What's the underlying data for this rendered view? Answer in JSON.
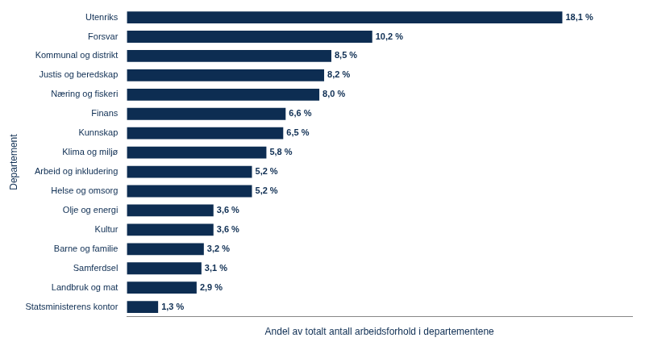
{
  "chart_data": {
    "type": "bar",
    "orientation": "horizontal",
    "categories": [
      "Utenriks",
      "Forsvar",
      "Kommunal og distrikt",
      "Justis og beredskap",
      "Næring og fiskeri",
      "Finans",
      "Kunnskap",
      "Klima og miljø",
      "Arbeid og inkludering",
      "Helse og omsorg",
      "Olje og energi",
      "Kultur",
      "Barne og familie",
      "Samferdsel",
      "Landbruk og mat",
      "Statsministerens kontor"
    ],
    "values": [
      18.1,
      10.2,
      8.5,
      8.2,
      8.0,
      6.6,
      6.5,
      5.8,
      5.2,
      5.2,
      3.6,
      3.6,
      3.2,
      3.1,
      2.9,
      1.3
    ],
    "value_labels": [
      "18,1 %",
      "10,2 %",
      "8,5 %",
      "8,2 %",
      "8,0 %",
      "6,6 %",
      "6,5 %",
      "5,8 %",
      "5,2 %",
      "5,2 %",
      "3,6 %",
      "3,6 %",
      "3,2 %",
      "3,1 %",
      "2,9 %",
      "1,3 %"
    ],
    "color": "#0d2d52",
    "xlabel": "Andel av totalt antall arbeidsforhold i departementene",
    "ylabel": "Departement",
    "xlim": [
      0,
      21
    ],
    "data_labels": true,
    "tick_labels": "y",
    "grid": false
  }
}
